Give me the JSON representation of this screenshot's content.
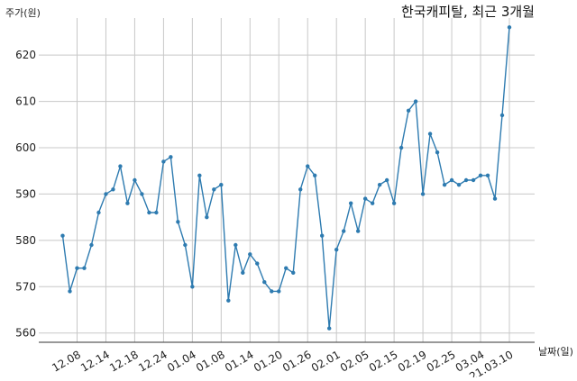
{
  "chart_data": {
    "type": "line",
    "title": "한국캐피탈, 최근 3개월",
    "ylabel": "주가(원)",
    "xlabel": "날짜(일)",
    "ylim": [
      558,
      628
    ],
    "yticks": [
      560,
      570,
      580,
      590,
      600,
      610,
      620
    ],
    "x_tick_labels": [
      "12.08",
      "12.14",
      "12.18",
      "12.24",
      "01.04",
      "01.08",
      "01.14",
      "01.20",
      "01.26",
      "02.01",
      "02.05",
      "02.15",
      "02.19",
      "02.25",
      "03.04",
      "21.03.10"
    ],
    "x_tick_indices": [
      2,
      6,
      10,
      14,
      18,
      22,
      26,
      30,
      34,
      38,
      42,
      46,
      50,
      54,
      58,
      62
    ],
    "grid": true,
    "colors": {
      "line": "#2e7bb0",
      "marker": "#2e7bb0"
    },
    "series": [
      {
        "values": [
          581,
          569,
          574,
          574,
          579,
          586,
          590,
          591,
          596,
          588,
          593,
          590,
          586,
          586,
          597,
          598,
          584,
          579,
          570,
          594,
          585,
          591,
          592,
          567,
          579,
          573,
          577,
          575,
          571,
          569,
          569,
          574,
          573,
          591,
          596,
          594,
          581,
          561,
          578,
          582,
          588,
          582,
          589,
          588,
          592,
          593,
          588,
          600,
          608,
          610,
          590,
          603,
          599,
          592,
          593,
          592,
          593,
          593,
          594,
          594,
          589,
          607,
          626
        ]
      }
    ]
  }
}
